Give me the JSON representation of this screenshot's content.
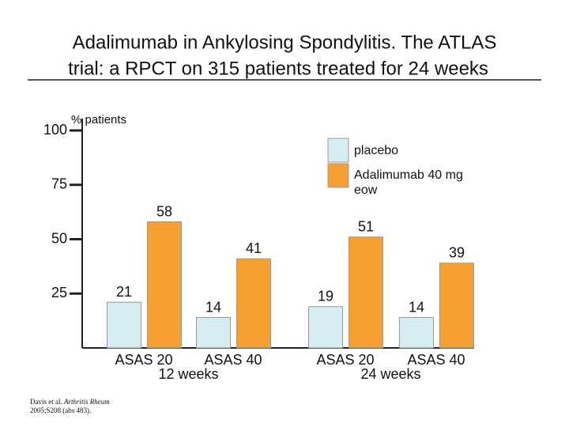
{
  "chart_data": {
    "type": "bar",
    "title": [
      "Adalimumab in Ankylosing Spondylitis. The ATLAS",
      "trial: a RPCT on 315 patients treated for 24 weeks"
    ],
    "y_label": "% patients",
    "categories": [
      "ASAS 20",
      "ASAS 40",
      "ASAS 20",
      "ASAS 40"
    ],
    "groups": [
      "12 weeks",
      "24 weeks"
    ],
    "series": [
      {
        "name": "placebo",
        "color": "#d6eef2",
        "values": [
          21,
          14,
          19,
          14
        ]
      },
      {
        "name": "Adalimumab 40 mg eow",
        "color": "#f6a033",
        "values": [
          58,
          41,
          51,
          39
        ]
      }
    ],
    "ylim": [
      0,
      100
    ],
    "yticks": [
      25,
      50,
      75,
      100
    ],
    "footnote": {
      "authors": "Davis et al.",
      "journal": "Arthritis Rheum",
      "citation": "2005;S208 (abs 483)."
    }
  }
}
